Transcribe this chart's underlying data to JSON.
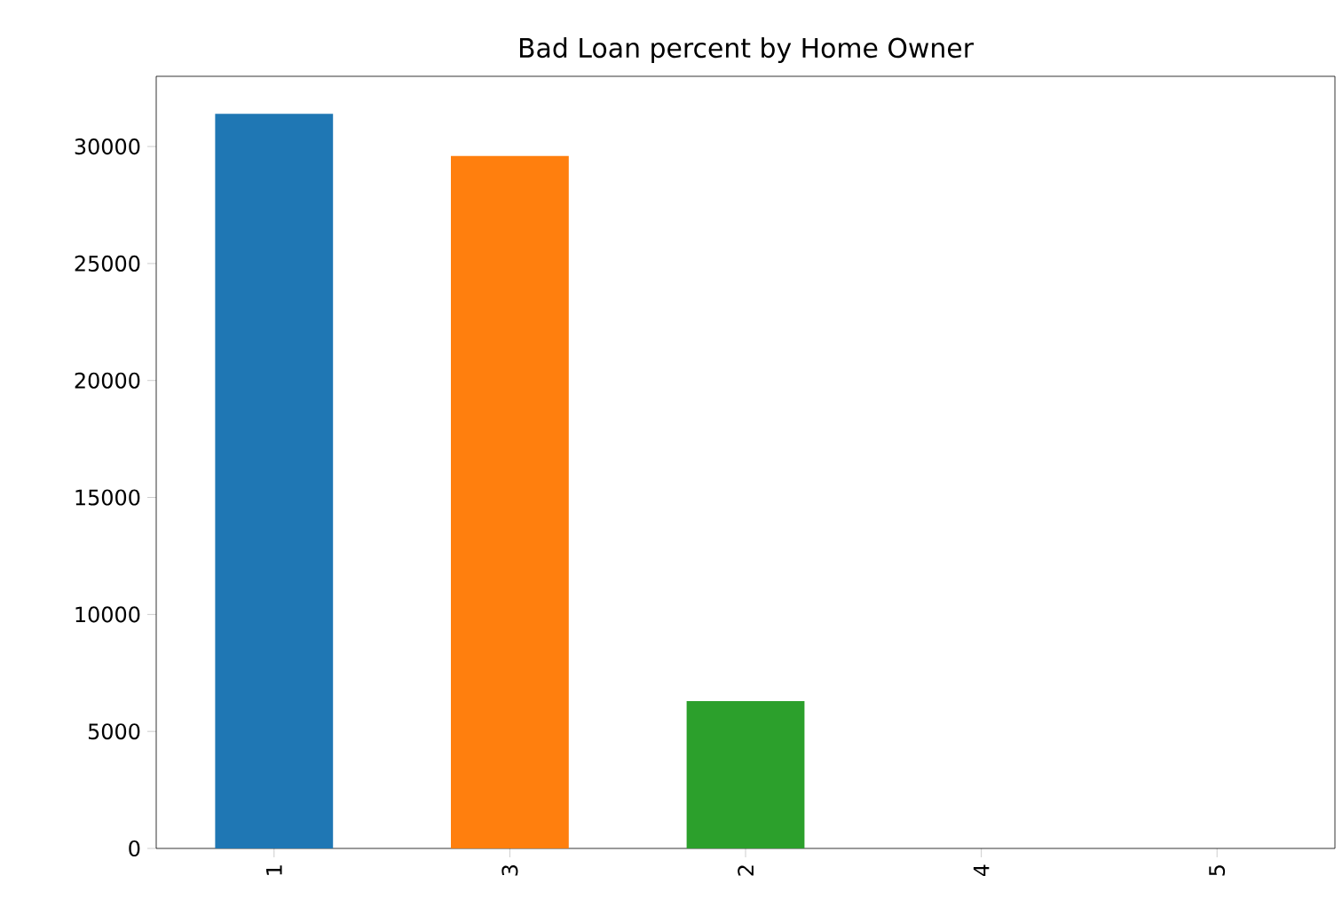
{
  "chart_data": {
    "type": "bar",
    "title": "Bad Loan percent by Home Owner",
    "categories": [
      "1",
      "3",
      "2",
      "4",
      "5"
    ],
    "values": [
      31400,
      29600,
      6300,
      0,
      0
    ],
    "colors": [
      "#1f77b4",
      "#ff7f0e",
      "#2ca02c",
      "#d62728",
      "#9467bd"
    ],
    "ylim": [
      0,
      33000
    ],
    "yticks": [
      0,
      5000,
      10000,
      15000,
      20000,
      25000,
      30000
    ],
    "grid": false
  }
}
